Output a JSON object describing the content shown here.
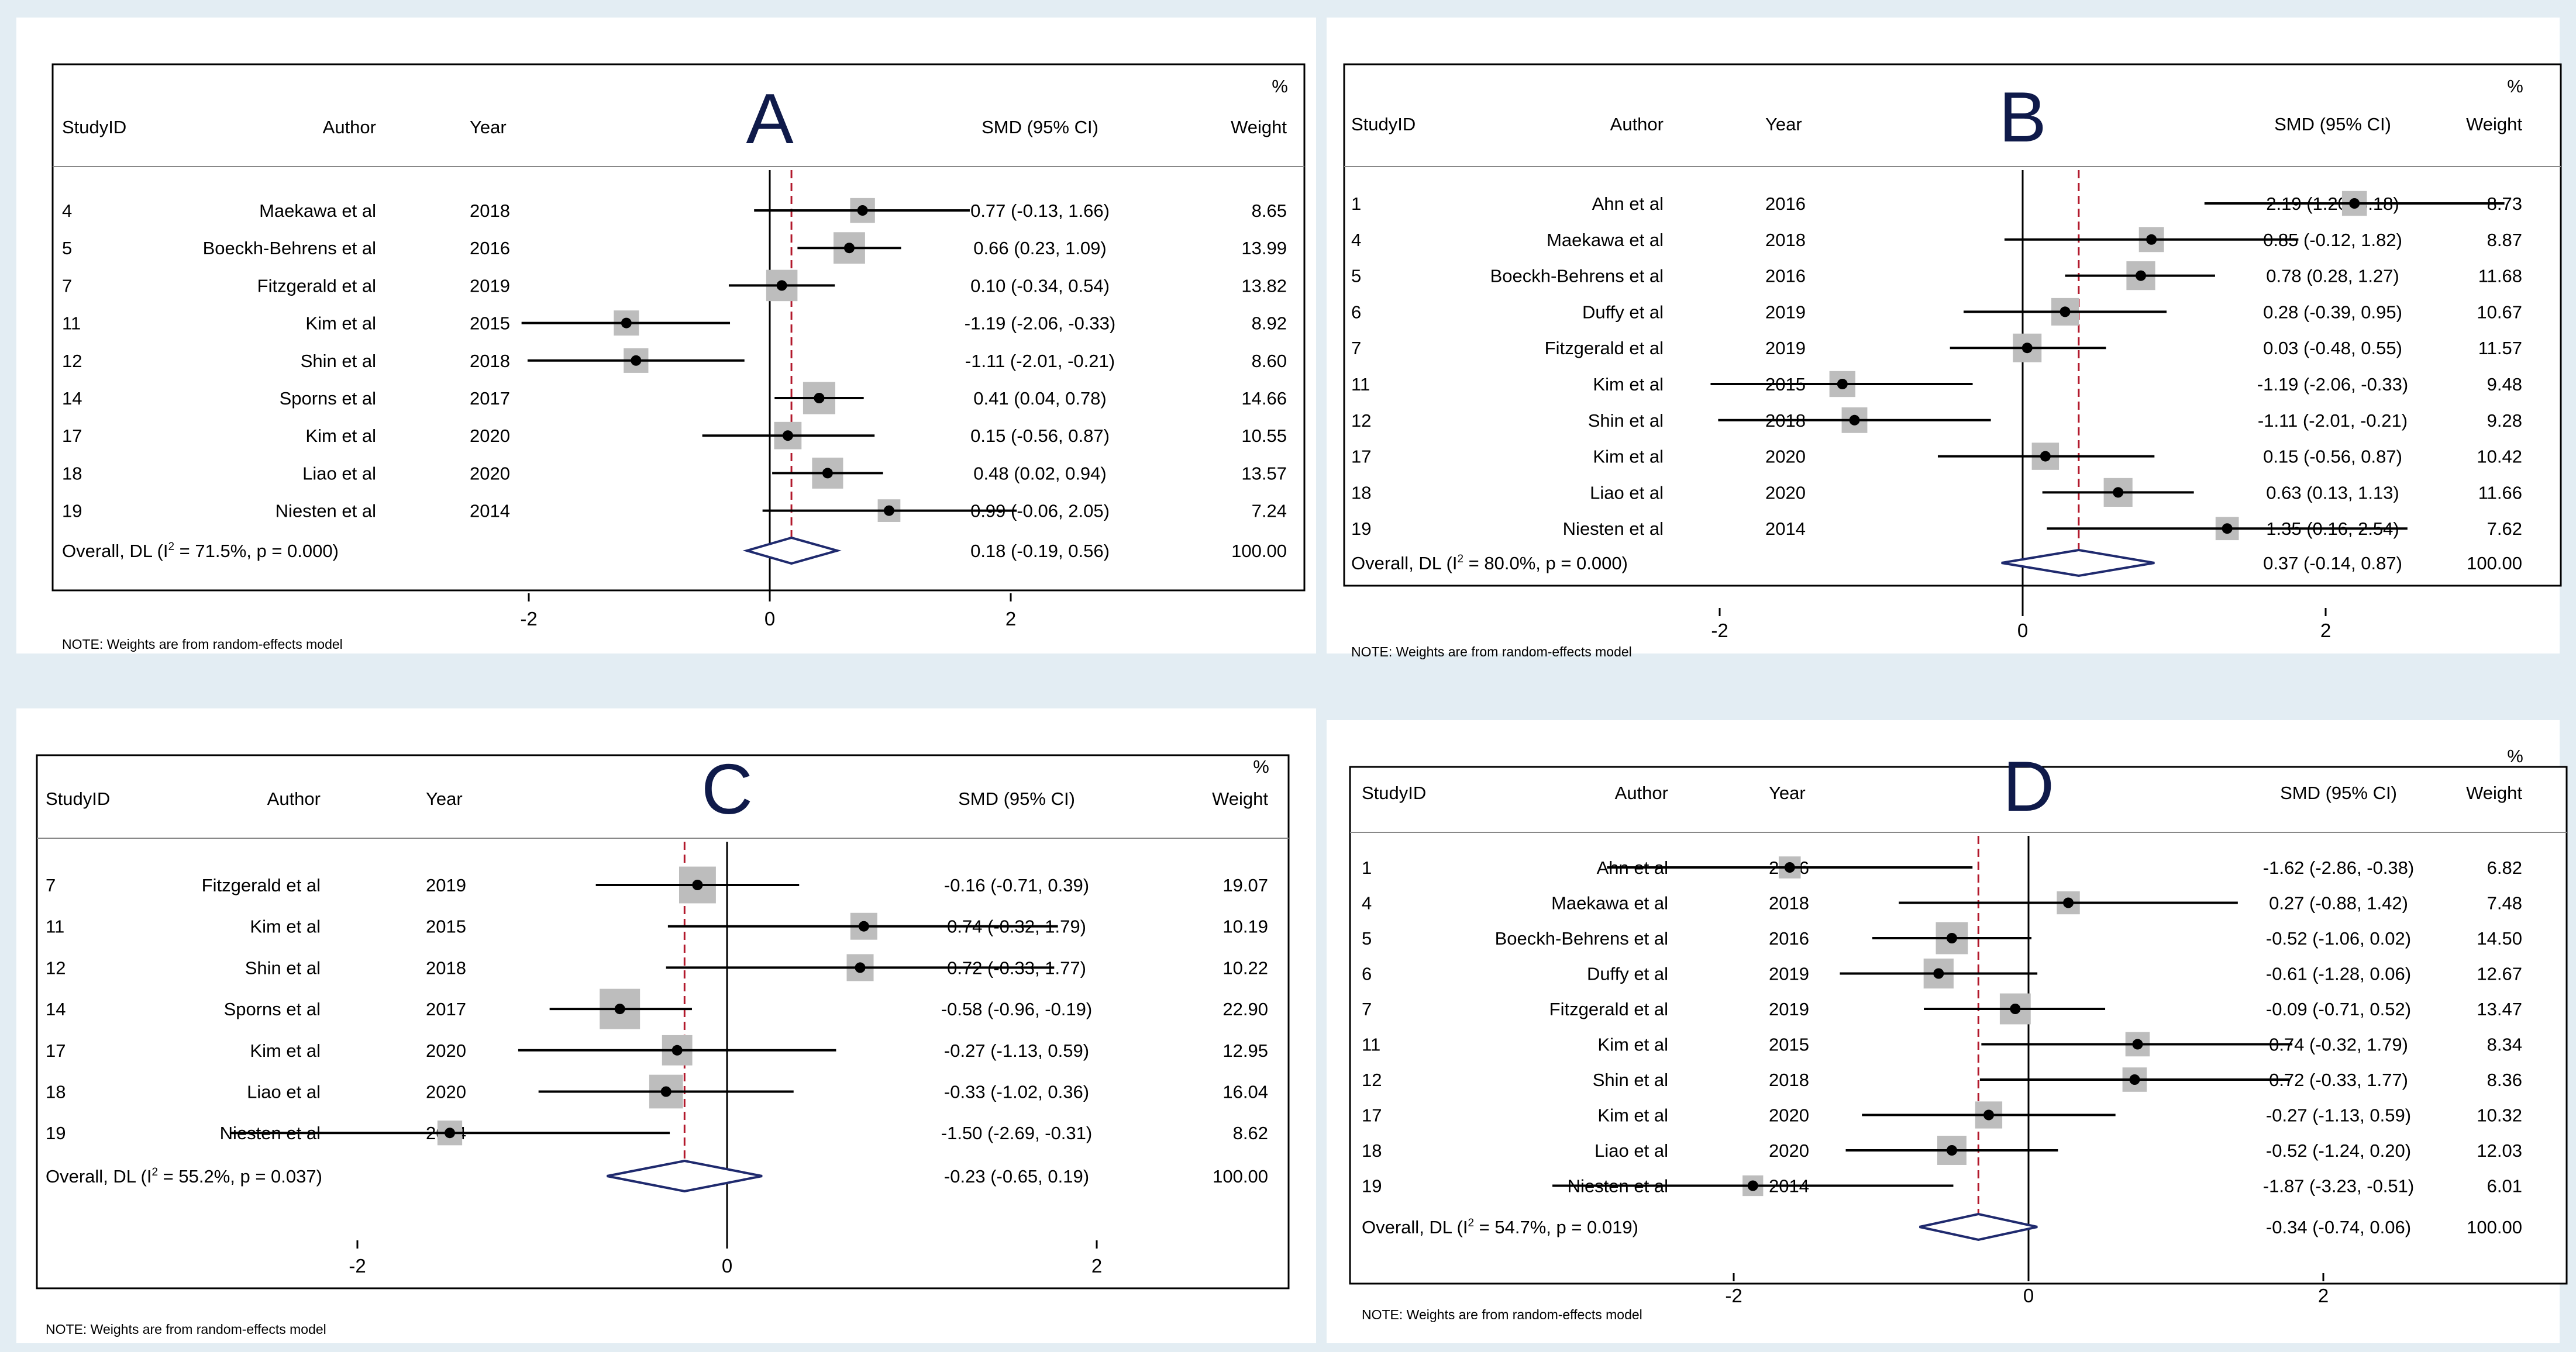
{
  "headers": {
    "studyid": "StudyID",
    "author": "Author",
    "year": "Year",
    "smd": "SMD (95% CI)",
    "pct": "%",
    "weight": "Weight"
  },
  "note": "NOTE: Weights are from random-effects model",
  "colors": {
    "background": "#e3edf3",
    "diamond": "#1f2a6e",
    "reference_line": "#b2182b",
    "box": "#bdbdbd",
    "letter": "#0f1a4a"
  },
  "chart_data": [
    {
      "type": "forest",
      "title": "A",
      "xticks": [
        -2,
        0,
        2
      ],
      "xlim": [
        -2.05,
        2.05
      ],
      "null_line": 0,
      "studies": [
        {
          "id": "4",
          "author": "Maekawa et al",
          "year": "2018",
          "smd": 0.77,
          "lo": -0.13,
          "hi": 1.66,
          "ci_text": "0.77 (-0.13, 1.66)",
          "weight": "8.65"
        },
        {
          "id": "5",
          "author": "Boeckh-Behrens et al",
          "year": "2016",
          "smd": 0.66,
          "lo": 0.23,
          "hi": 1.09,
          "ci_text": "0.66 (0.23, 1.09)",
          "weight": "13.99"
        },
        {
          "id": "7",
          "author": "Fitzgerald et al",
          "year": "2019",
          "smd": 0.1,
          "lo": -0.34,
          "hi": 0.54,
          "ci_text": "0.10 (-0.34, 0.54)",
          "weight": "13.82"
        },
        {
          "id": "11",
          "author": "Kim et al",
          "year": "2015",
          "smd": -1.19,
          "lo": -2.06,
          "hi": -0.33,
          "ci_text": "-1.19 (-2.06, -0.33)",
          "weight": "8.92"
        },
        {
          "id": "12",
          "author": "Shin et al",
          "year": "2018",
          "smd": -1.11,
          "lo": -2.01,
          "hi": -0.21,
          "ci_text": "-1.11 (-2.01, -0.21)",
          "weight": "8.60"
        },
        {
          "id": "14",
          "author": "Sporns et al",
          "year": "2017",
          "smd": 0.41,
          "lo": 0.04,
          "hi": 0.78,
          "ci_text": "0.41 (0.04, 0.78)",
          "weight": "14.66"
        },
        {
          "id": "17",
          "author": "Kim et al",
          "year": "2020",
          "smd": 0.15,
          "lo": -0.56,
          "hi": 0.87,
          "ci_text": "0.15 (-0.56, 0.87)",
          "weight": "10.55"
        },
        {
          "id": "18",
          "author": "Liao et al",
          "year": "2020",
          "smd": 0.48,
          "lo": 0.02,
          "hi": 0.94,
          "ci_text": "0.48 (0.02, 0.94)",
          "weight": "13.57"
        },
        {
          "id": "19",
          "author": "Niesten et al",
          "year": "2014",
          "smd": 0.99,
          "lo": -0.06,
          "hi": 2.05,
          "ci_text": "0.99 (-0.06, 2.05)",
          "weight": "7.24"
        }
      ],
      "overall": {
        "pre": "Overall, DL (I",
        "sup": "2",
        "post": " = 71.5%, p = 0.000)",
        "smd": 0.18,
        "lo": -0.19,
        "hi": 0.56,
        "ci_text": "0.18 (-0.19, 0.56)",
        "weight": "100.00"
      }
    },
    {
      "type": "forest",
      "title": "B",
      "xticks": [
        -2,
        0,
        2
      ],
      "xlim": [
        -2.06,
        3.18
      ],
      "null_line": 0,
      "studies": [
        {
          "id": "1",
          "author": "Ahn et al",
          "year": "2016",
          "smd": 2.19,
          "lo": 1.2,
          "hi": 3.18,
          "ci_text": "2.19 (1.20, 3.18)",
          "weight": "8.73"
        },
        {
          "id": "4",
          "author": "Maekawa et al",
          "year": "2018",
          "smd": 0.85,
          "lo": -0.12,
          "hi": 1.82,
          "ci_text": "0.85 (-0.12, 1.82)",
          "weight": "8.87"
        },
        {
          "id": "5",
          "author": "Boeckh-Behrens et al",
          "year": "2016",
          "smd": 0.78,
          "lo": 0.28,
          "hi": 1.27,
          "ci_text": "0.78 (0.28, 1.27)",
          "weight": "11.68"
        },
        {
          "id": "6",
          "author": "Duffy et al",
          "year": "2019",
          "smd": 0.28,
          "lo": -0.39,
          "hi": 0.95,
          "ci_text": "0.28 (-0.39, 0.95)",
          "weight": "10.67"
        },
        {
          "id": "7",
          "author": "Fitzgerald et al",
          "year": "2019",
          "smd": 0.03,
          "lo": -0.48,
          "hi": 0.55,
          "ci_text": "0.03 (-0.48, 0.55)",
          "weight": "11.57"
        },
        {
          "id": "11",
          "author": "Kim et al",
          "year": "2015",
          "smd": -1.19,
          "lo": -2.06,
          "hi": -0.33,
          "ci_text": "-1.19 (-2.06, -0.33)",
          "weight": "9.48"
        },
        {
          "id": "12",
          "author": "Shin et al",
          "year": "2018",
          "smd": -1.11,
          "lo": -2.01,
          "hi": -0.21,
          "ci_text": "-1.11 (-2.01, -0.21)",
          "weight": "9.28"
        },
        {
          "id": "17",
          "author": "Kim et al",
          "year": "2020",
          "smd": 0.15,
          "lo": -0.56,
          "hi": 0.87,
          "ci_text": "0.15 (-0.56, 0.87)",
          "weight": "10.42"
        },
        {
          "id": "18",
          "author": "Liao et al",
          "year": "2020",
          "smd": 0.63,
          "lo": 0.13,
          "hi": 1.13,
          "ci_text": "0.63 (0.13, 1.13)",
          "weight": "11.66"
        },
        {
          "id": "19",
          "author": "Niesten et al",
          "year": "2014",
          "smd": 1.35,
          "lo": 0.16,
          "hi": 2.54,
          "ci_text": "1.35 (0.16, 2.54)",
          "weight": "7.62"
        }
      ],
      "overall": {
        "pre": "Overall, DL (I",
        "sup": "2",
        "post": " = 80.0%, p = 0.000)",
        "smd": 0.37,
        "lo": -0.14,
        "hi": 0.87,
        "ci_text": "0.37 (-0.14, 0.87)",
        "weight": "100.00"
      }
    },
    {
      "type": "forest",
      "title": "C",
      "xticks": [
        -2,
        0,
        2
      ],
      "xlim": [
        -2.69,
        1.79
      ],
      "null_line": 0,
      "studies": [
        {
          "id": "7",
          "author": "Fitzgerald et al",
          "year": "2019",
          "smd": -0.16,
          "lo": -0.71,
          "hi": 0.39,
          "ci_text": "-0.16 (-0.71, 0.39)",
          "weight": "19.07"
        },
        {
          "id": "11",
          "author": "Kim et al",
          "year": "2015",
          "smd": 0.74,
          "lo": -0.32,
          "hi": 1.79,
          "ci_text": "0.74 (-0.32, 1.79)",
          "weight": "10.19"
        },
        {
          "id": "12",
          "author": "Shin et al",
          "year": "2018",
          "smd": 0.72,
          "lo": -0.33,
          "hi": 1.77,
          "ci_text": "0.72 (-0.33, 1.77)",
          "weight": "10.22"
        },
        {
          "id": "14",
          "author": "Sporns et al",
          "year": "2017",
          "smd": -0.58,
          "lo": -0.96,
          "hi": -0.19,
          "ci_text": "-0.58 (-0.96, -0.19)",
          "weight": "22.90"
        },
        {
          "id": "17",
          "author": "Kim et al",
          "year": "2020",
          "smd": -0.27,
          "lo": -1.13,
          "hi": 0.59,
          "ci_text": "-0.27 (-1.13, 0.59)",
          "weight": "12.95"
        },
        {
          "id": "18",
          "author": "Liao et al",
          "year": "2020",
          "smd": -0.33,
          "lo": -1.02,
          "hi": 0.36,
          "ci_text": "-0.33 (-1.02, 0.36)",
          "weight": "16.04"
        },
        {
          "id": "19",
          "author": "Niesten et al",
          "year": "2014",
          "smd": -1.5,
          "lo": -2.69,
          "hi": -0.31,
          "ci_text": "-1.50 (-2.69, -0.31)",
          "weight": "8.62"
        }
      ],
      "overall": {
        "pre": "Overall, DL (I",
        "sup": "2",
        "post": " = 55.2%, p = 0.037)",
        "smd": -0.23,
        "lo": -0.65,
        "hi": 0.19,
        "ci_text": "-0.23 (-0.65, 0.19)",
        "weight": "100.00"
      }
    },
    {
      "type": "forest",
      "title": "D",
      "xticks": [
        -2,
        0,
        2
      ],
      "xlim": [
        -3.23,
        1.79
      ],
      "null_line": 0,
      "studies": [
        {
          "id": "1",
          "author": "Ahn et al",
          "year": "2016",
          "smd": -1.62,
          "lo": -2.86,
          "hi": -0.38,
          "ci_text": "-1.62 (-2.86, -0.38)",
          "weight": "6.82"
        },
        {
          "id": "4",
          "author": "Maekawa et al",
          "year": "2018",
          "smd": 0.27,
          "lo": -0.88,
          "hi": 1.42,
          "ci_text": "0.27 (-0.88, 1.42)",
          "weight": "7.48"
        },
        {
          "id": "5",
          "author": "Boeckh-Behrens et al",
          "year": "2016",
          "smd": -0.52,
          "lo": -1.06,
          "hi": 0.02,
          "ci_text": "-0.52 (-1.06, 0.02)",
          "weight": "14.50"
        },
        {
          "id": "6",
          "author": "Duffy et al",
          "year": "2019",
          "smd": -0.61,
          "lo": -1.28,
          "hi": 0.06,
          "ci_text": "-0.61 (-1.28, 0.06)",
          "weight": "12.67"
        },
        {
          "id": "7",
          "author": "Fitzgerald et al",
          "year": "2019",
          "smd": -0.09,
          "lo": -0.71,
          "hi": 0.52,
          "ci_text": "-0.09 (-0.71, 0.52)",
          "weight": "13.47"
        },
        {
          "id": "11",
          "author": "Kim et al",
          "year": "2015",
          "smd": 0.74,
          "lo": -0.32,
          "hi": 1.79,
          "ci_text": "0.74 (-0.32, 1.79)",
          "weight": "8.34"
        },
        {
          "id": "12",
          "author": "Shin et al",
          "year": "2018",
          "smd": 0.72,
          "lo": -0.33,
          "hi": 1.77,
          "ci_text": "0.72 (-0.33, 1.77)",
          "weight": "8.36"
        },
        {
          "id": "17",
          "author": "Kim et al",
          "year": "2020",
          "smd": -0.27,
          "lo": -1.13,
          "hi": 0.59,
          "ci_text": "-0.27 (-1.13, 0.59)",
          "weight": "10.32"
        },
        {
          "id": "18",
          "author": "Liao et al",
          "year": "2020",
          "smd": -0.52,
          "lo": -1.24,
          "hi": 0.2,
          "ci_text": "-0.52 (-1.24, 0.20)",
          "weight": "12.03"
        },
        {
          "id": "19",
          "author": "Niesten et al",
          "year": "2014",
          "smd": -1.87,
          "lo": -3.23,
          "hi": -0.51,
          "ci_text": "-1.87 (-3.23, -0.51)",
          "weight": "6.01"
        }
      ],
      "overall": {
        "pre": "Overall, DL (I",
        "sup": "2",
        "post": " = 54.7%, p = 0.019)",
        "smd": -0.34,
        "lo": -0.74,
        "hi": 0.06,
        "ci_text": "-0.34 (-0.74, 0.06)",
        "weight": "100.00"
      }
    }
  ]
}
